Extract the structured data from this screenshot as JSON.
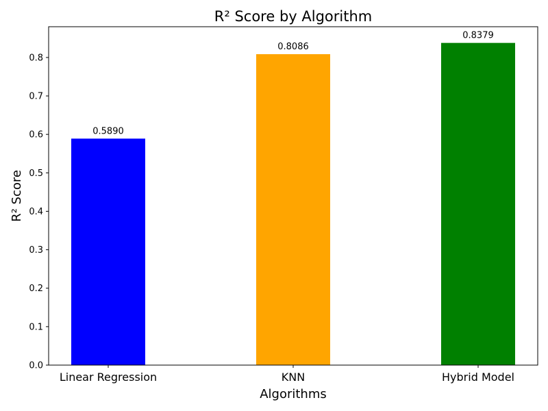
{
  "chart_data": {
    "type": "bar",
    "title": "R² Score by Algorithm",
    "xlabel": "Algorithms",
    "ylabel": "R² Score",
    "categories": [
      "Linear Regression",
      "KNN",
      "Hybrid Model"
    ],
    "values": [
      0.589,
      0.8086,
      0.8379
    ],
    "value_labels": [
      "0.5890",
      "0.8086",
      "0.8379"
    ],
    "colors": [
      "#0000ff",
      "#ffa500",
      "#008000"
    ],
    "ylim": [
      0,
      0.88
    ],
    "yticks": [
      0.0,
      0.1,
      0.2,
      0.3,
      0.4,
      0.5,
      0.6,
      0.7,
      0.8
    ],
    "ytick_labels": [
      "0.0",
      "0.1",
      "0.2",
      "0.3",
      "0.4",
      "0.5",
      "0.6",
      "0.7",
      "0.8"
    ],
    "grid": false,
    "legend": "none"
  }
}
